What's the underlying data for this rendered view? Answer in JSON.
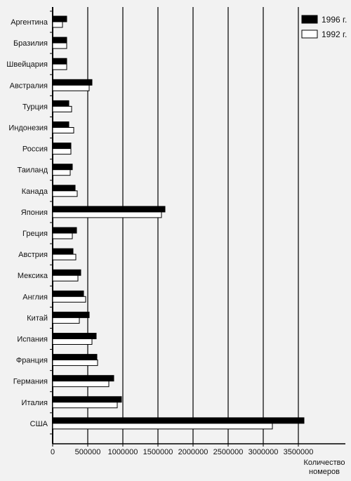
{
  "chart_data": {
    "type": "bar",
    "orientation": "horizontal",
    "categories": [
      "Аргентина",
      "Бразилия",
      "Швейцария",
      "Австралия",
      "Турция",
      "Индонезия",
      "Россия",
      "Таиланд",
      "Канада",
      "Япония",
      "Греция",
      "Австрия",
      "Мексика",
      "Англия",
      "Китай",
      "Испания",
      "Франция",
      "Германия",
      "Италия",
      "США"
    ],
    "series": [
      {
        "name": "1996 г.",
        "color": "#000000",
        "values": [
          200000,
          200000,
          200000,
          560000,
          230000,
          230000,
          260000,
          280000,
          320000,
          1600000,
          340000,
          290000,
          400000,
          440000,
          520000,
          620000,
          630000,
          870000,
          980000,
          3580000
        ]
      },
      {
        "name": "1992 г.",
        "color": "#ffffff",
        "values": [
          140000,
          200000,
          200000,
          520000,
          270000,
          300000,
          260000,
          250000,
          350000,
          1550000,
          280000,
          330000,
          360000,
          470000,
          380000,
          560000,
          640000,
          800000,
          920000,
          3130000
        ]
      }
    ],
    "xticks": [
      "0",
      "500000",
      "1000000",
      "1500000",
      "2000000",
      "2500000",
      "3000000",
      "3500000"
    ],
    "xlim": [
      0,
      4000000
    ],
    "xlabel_line1": "Количество",
    "xlabel_line2": "номеров",
    "grid": true,
    "legend_placement": "top-right"
  }
}
